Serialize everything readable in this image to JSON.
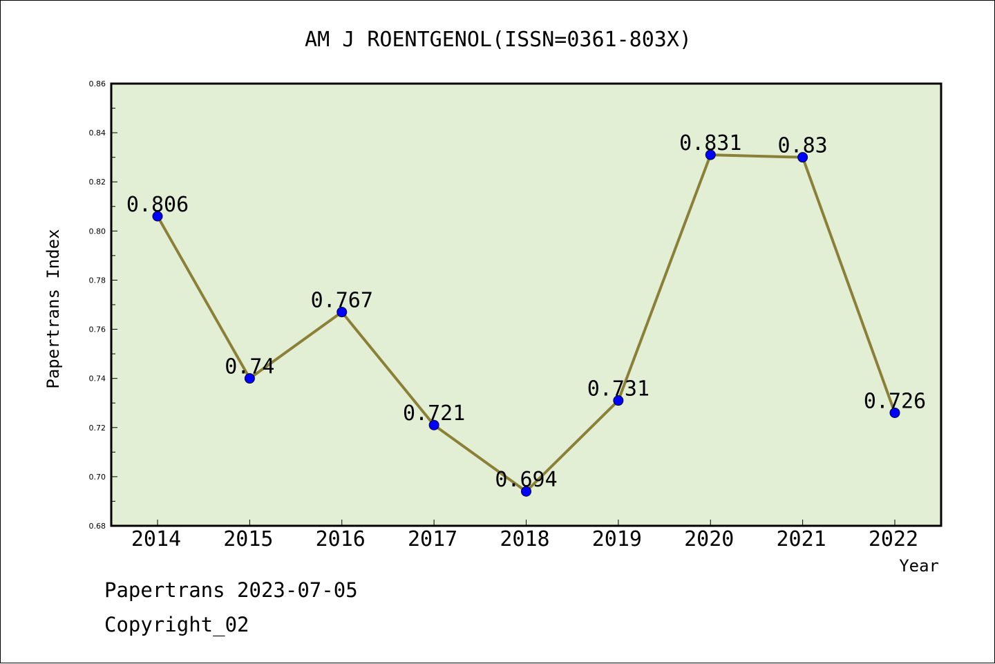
{
  "chart_data": {
    "type": "line",
    "title": "AM J ROENTGENOL(ISSN=0361-803X)",
    "xlabel": "Year",
    "ylabel": "Papertrans Index",
    "categories": [
      "2014",
      "2015",
      "2016",
      "2017",
      "2018",
      "2019",
      "2020",
      "2021",
      "2022"
    ],
    "values": [
      0.806,
      0.74,
      0.767,
      0.721,
      0.694,
      0.731,
      0.831,
      0.83,
      0.726
    ],
    "data_labels": [
      "0.806",
      "0.74",
      "0.767",
      "0.721",
      "0.694",
      "0.731",
      "0.831",
      "0.83",
      "0.726"
    ],
    "ylim": [
      0.68,
      0.86
    ],
    "yticks": [
      "0.68",
      "0.70",
      "0.72",
      "0.74",
      "0.76",
      "0.78",
      "0.80",
      "0.82",
      "0.84",
      "0.86"
    ],
    "grid": false,
    "colors": {
      "plot_background": "#e2efd5",
      "line": "#8b8038",
      "marker": "#0000ff"
    }
  },
  "footer": {
    "line1": "Papertrans 2023-07-05",
    "line2": "Copyright_02"
  }
}
